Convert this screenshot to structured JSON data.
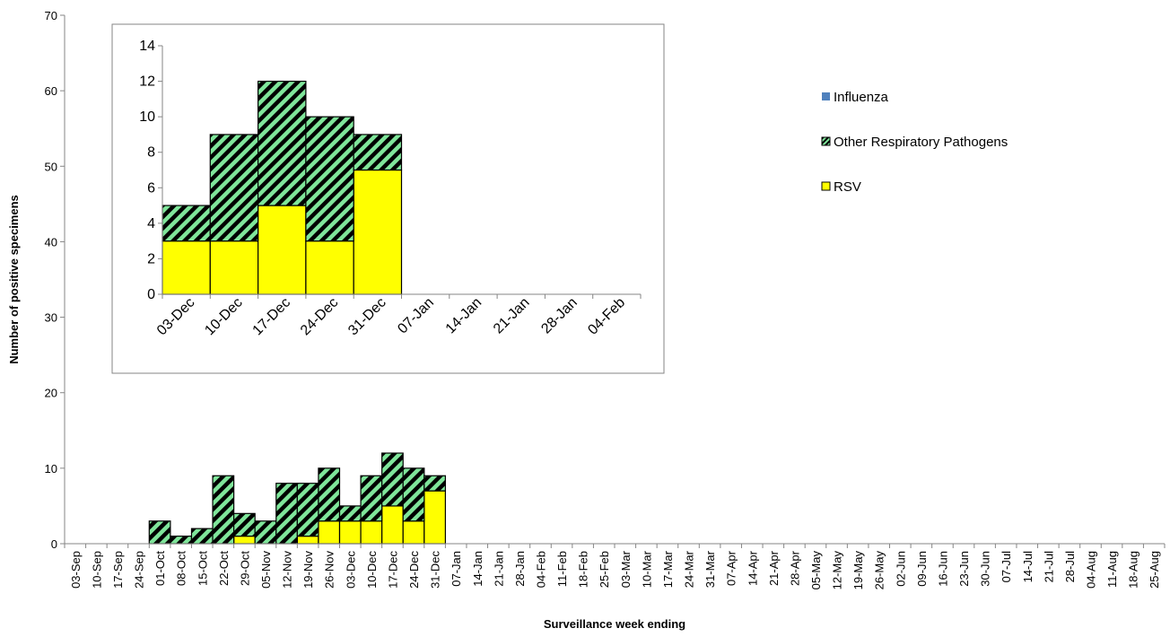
{
  "chart_data": [
    {
      "type": "bar",
      "stacked": true,
      "xlabel": "Surveillance week ending",
      "ylabel": "Number of positive specimens",
      "ylim": [
        0,
        70
      ],
      "yticks": [
        0,
        10,
        20,
        30,
        40,
        50,
        60,
        70
      ],
      "grid": false,
      "legend_position": "right",
      "categories": [
        "03-Sep",
        "10-Sep",
        "17-Sep",
        "24-Sep",
        "01-Oct",
        "08-Oct",
        "15-Oct",
        "22-Oct",
        "29-Oct",
        "05-Nov",
        "12-Nov",
        "19-Nov",
        "26-Nov",
        "03-Dec",
        "10-Dec",
        "17-Dec",
        "24-Dec",
        "31-Dec",
        "07-Jan",
        "14-Jan",
        "21-Jan",
        "28-Jan",
        "04-Feb",
        "11-Feb",
        "18-Feb",
        "25-Feb",
        "03-Mar",
        "10-Mar",
        "17-Mar",
        "24-Mar",
        "31-Mar",
        "07-Apr",
        "14-Apr",
        "21-Apr",
        "28-Apr",
        "05-May",
        "12-May",
        "19-May",
        "26-May",
        "02-Jun",
        "09-Jun",
        "16-Jun",
        "23-Jun",
        "30-Jun",
        "07-Jul",
        "14-Jul",
        "21-Jul",
        "28-Jul",
        "04-Aug",
        "11-Aug",
        "18-Aug",
        "25-Aug"
      ],
      "series": [
        {
          "name": "RSV",
          "color": "#ffff00",
          "values": [
            0,
            0,
            0,
            0,
            0,
            0,
            0,
            0,
            1,
            0,
            0,
            1,
            3,
            3,
            3,
            5,
            3,
            7,
            0,
            0,
            0,
            0,
            0,
            0,
            0,
            0,
            0,
            0,
            0,
            0,
            0,
            0,
            0,
            0,
            0,
            0,
            0,
            0,
            0,
            0,
            0,
            0,
            0,
            0,
            0,
            0,
            0,
            0,
            0,
            0,
            0,
            0
          ]
        },
        {
          "name": "Other Respiratory Pathogens",
          "color": "#7fe59a",
          "pattern": "diagonal-hatch",
          "values": [
            0,
            0,
            0,
            0,
            3,
            1,
            2,
            9,
            3,
            3,
            8,
            7,
            7,
            2,
            6,
            7,
            7,
            2,
            0,
            0,
            0,
            0,
            0,
            0,
            0,
            0,
            0,
            0,
            0,
            0,
            0,
            0,
            0,
            0,
            0,
            0,
            0,
            0,
            0,
            0,
            0,
            0,
            0,
            0,
            0,
            0,
            0,
            0,
            0,
            0,
            0,
            0
          ]
        },
        {
          "name": "Influenza",
          "color": "#4f81bd",
          "values": [
            0,
            0,
            0,
            0,
            0,
            0,
            0,
            0,
            0,
            0,
            0,
            0,
            0,
            0,
            0,
            0,
            0,
            0,
            0,
            0,
            0,
            0,
            0,
            0,
            0,
            0,
            0,
            0,
            0,
            0,
            0,
            0,
            0,
            0,
            0,
            0,
            0,
            0,
            0,
            0,
            0,
            0,
            0,
            0,
            0,
            0,
            0,
            0,
            0,
            0,
            0,
            0
          ]
        }
      ]
    },
    {
      "type": "bar",
      "stacked": true,
      "inset": true,
      "ylim": [
        0,
        14
      ],
      "yticks": [
        0,
        2,
        4,
        6,
        8,
        10,
        12,
        14
      ],
      "grid": false,
      "categories": [
        "03-Dec",
        "10-Dec",
        "17-Dec",
        "24-Dec",
        "31-Dec",
        "07-Jan",
        "14-Jan",
        "21-Jan",
        "28-Jan",
        "04-Feb"
      ],
      "series": [
        {
          "name": "RSV",
          "color": "#ffff00",
          "values": [
            3,
            3,
            5,
            3,
            7,
            0,
            0,
            0,
            0,
            0
          ]
        },
        {
          "name": "Other Respiratory Pathogens",
          "color": "#7fe59a",
          "pattern": "diagonal-hatch",
          "values": [
            2,
            6,
            7,
            7,
            2,
            0,
            0,
            0,
            0,
            0
          ]
        }
      ]
    }
  ],
  "legend": [
    {
      "label": "Influenza",
      "color": "#4f81bd",
      "pattern": "solid"
    },
    {
      "label": "Other Respiratory Pathogens",
      "color": "#7fe59a",
      "pattern": "diagonal-hatch"
    },
    {
      "label": "RSV",
      "color": "#ffff00",
      "pattern": "solid"
    }
  ]
}
